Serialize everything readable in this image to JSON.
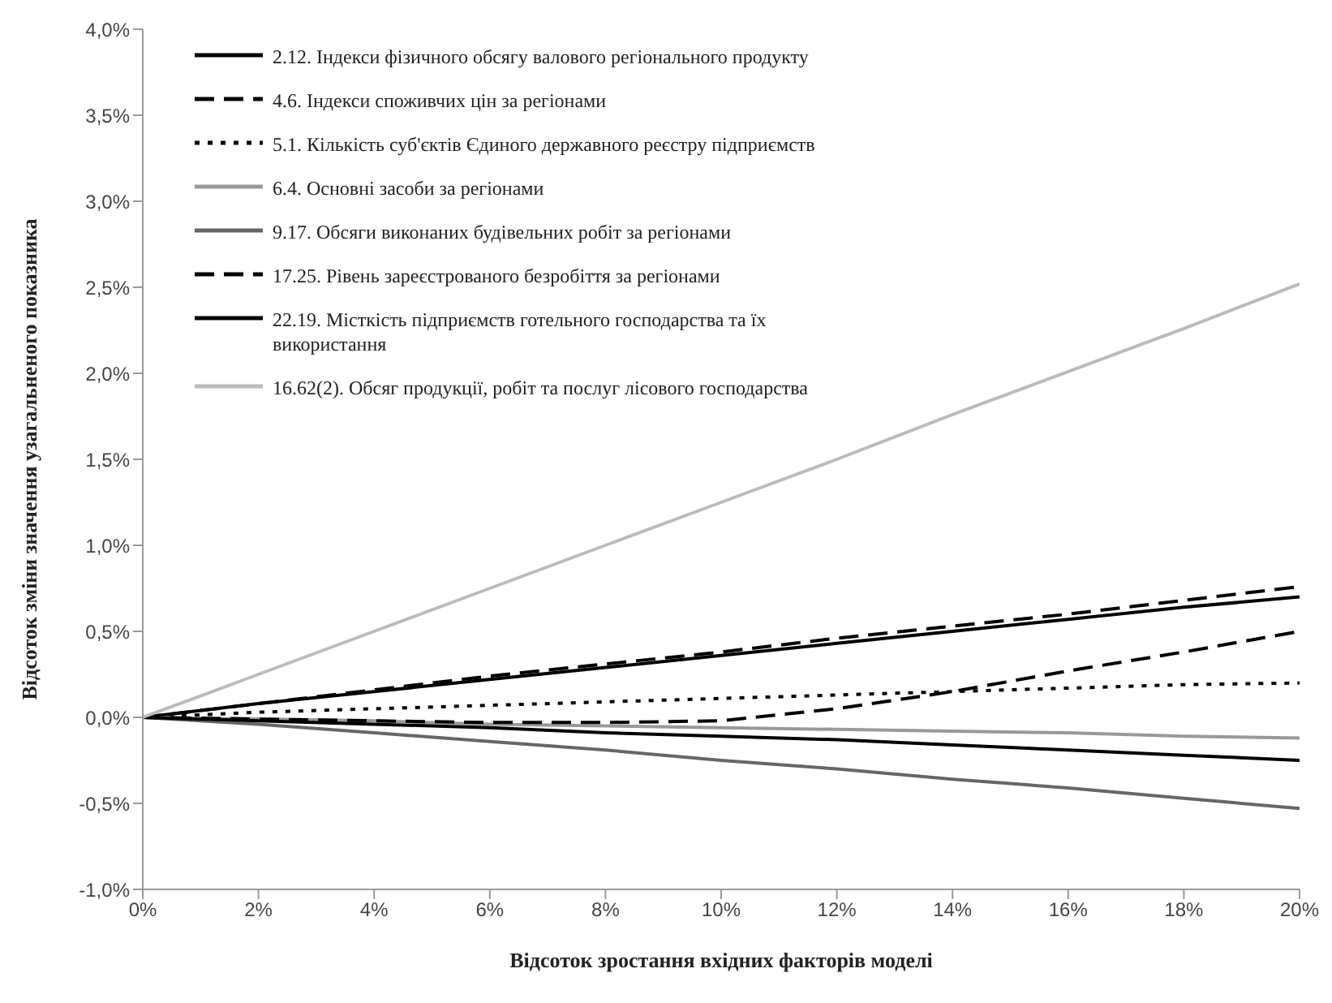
{
  "chart_data": {
    "type": "line",
    "xlabel": "Відсоток зростання вхідних факторів моделі",
    "ylabel": "Відсоток зміни значення узагальненого показника",
    "x": [
      0,
      2,
      4,
      6,
      8,
      10,
      12,
      14,
      16,
      18,
      20
    ],
    "xlim": [
      0,
      20
    ],
    "xticks": [
      {
        "value": 0,
        "label": "0%"
      },
      {
        "value": 2,
        "label": "2%"
      },
      {
        "value": 4,
        "label": "4%"
      },
      {
        "value": 6,
        "label": "6%"
      },
      {
        "value": 8,
        "label": "8%"
      },
      {
        "value": 10,
        "label": "10%"
      },
      {
        "value": 12,
        "label": "12%"
      },
      {
        "value": 14,
        "label": "14%"
      },
      {
        "value": 16,
        "label": "16%"
      },
      {
        "value": 18,
        "label": "18%"
      },
      {
        "value": 20,
        "label": "20%"
      }
    ],
    "ylim": [
      -1,
      4
    ],
    "yticks": [
      {
        "value": -1,
        "label": "-1,0%"
      },
      {
        "value": -0.5,
        "label": "-0,5%"
      },
      {
        "value": 0,
        "label": "0,0%"
      },
      {
        "value": 0.5,
        "label": "0,5%"
      },
      {
        "value": 1,
        "label": "1,0%"
      },
      {
        "value": 1.5,
        "label": "1,5%"
      },
      {
        "value": 2,
        "label": "2,0%"
      },
      {
        "value": 2.5,
        "label": "2,5%"
      },
      {
        "value": 3,
        "label": "3,0%"
      },
      {
        "value": 3.5,
        "label": "3,5%"
      },
      {
        "value": 4,
        "label": "4,0%"
      }
    ],
    "grid": false,
    "legend": "top left",
    "marker": "none",
    "series": [
      {
        "name": "2.12. Індекси фізичного обсягу валового регіонального продукту",
        "color": "#000000",
        "line_style": "solid",
        "values": [
          0,
          0.08,
          0.15,
          0.22,
          0.29,
          0.36,
          0.43,
          0.5,
          0.57,
          0.64,
          0.7
        ]
      },
      {
        "name": "4.6. Індекси споживчих цін за регіонами",
        "color": "#000000",
        "line_style": "dashed",
        "values": [
          0,
          0.08,
          0.16,
          0.24,
          0.31,
          0.38,
          0.46,
          0.53,
          0.6,
          0.68,
          0.76
        ]
      },
      {
        "name": "5.1. Кількість суб'єктів Єдиного державного реєстру підприємств",
        "color": "#000000",
        "line_style": "dotted",
        "values": [
          0,
          0.03,
          0.05,
          0.07,
          0.09,
          0.11,
          0.13,
          0.15,
          0.17,
          0.19,
          0.2
        ]
      },
      {
        "name": "6.4. Основні засоби за регіонами",
        "color": "#999999",
        "line_style": "solid",
        "values": [
          0,
          -0.01,
          -0.02,
          -0.04,
          -0.05,
          -0.06,
          -0.07,
          -0.08,
          -0.09,
          -0.11,
          -0.12
        ]
      },
      {
        "name": "9.17. Обсяги виконаних будівельних робіт за регіонами",
        "color": "#666666",
        "line_style": "solid",
        "values": [
          0,
          -0.04,
          -0.09,
          -0.14,
          -0.19,
          -0.25,
          -0.3,
          -0.36,
          -0.41,
          -0.47,
          -0.53
        ]
      },
      {
        "name": "17.25. Рівень зареєстрованого безробіття за регіонами",
        "color": "#000000",
        "line_style": "dashed",
        "values": [
          0,
          -0.01,
          -0.02,
          -0.03,
          -0.03,
          -0.02,
          0.05,
          0.15,
          0.27,
          0.38,
          0.5
        ]
      },
      {
        "name": "22.19. Місткість підприємств готельного господарства та їх використання",
        "color": "#000000",
        "line_style": "solid",
        "values": [
          0,
          -0.02,
          -0.04,
          -0.06,
          -0.09,
          -0.11,
          -0.13,
          -0.16,
          -0.19,
          -0.22,
          -0.25
        ]
      },
      {
        "name": "16.62(2). Обсяг продукції, робіт та послуг лісового господарства",
        "color": "#bbbbbb",
        "line_style": "solid",
        "values": [
          0,
          0.25,
          0.5,
          0.75,
          1.0,
          1.25,
          1.5,
          1.76,
          2.01,
          2.26,
          2.52
        ]
      }
    ]
  }
}
